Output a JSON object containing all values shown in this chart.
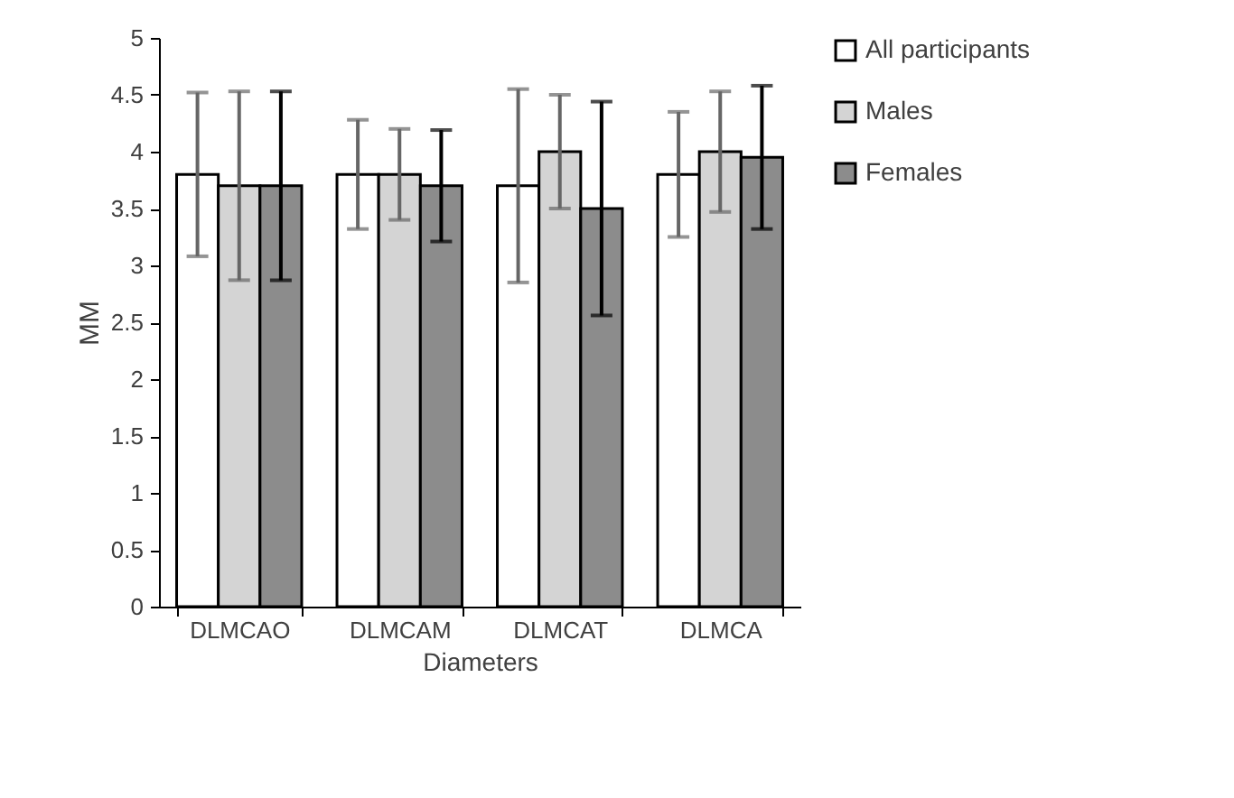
{
  "chart_data": {
    "type": "bar",
    "xlabel": "Diameters",
    "ylabel": "MM",
    "categories": [
      "DLMCAO",
      "DLMCAM",
      "DLMCAT",
      "DLMCA"
    ],
    "series": [
      {
        "name": "All participants",
        "color": "#ffffff",
        "values": [
          3.8,
          3.8,
          3.7,
          3.8
        ],
        "errors": [
          0.72,
          0.48,
          0.85,
          0.55
        ]
      },
      {
        "name": "Males",
        "color": "#d4d4d4",
        "values": [
          3.7,
          3.8,
          4.0,
          4.0
        ],
        "errors": [
          0.83,
          0.4,
          0.5,
          0.53
        ]
      },
      {
        "name": "Females",
        "color": "#8c8c8c",
        "values": [
          3.7,
          3.7,
          3.5,
          3.95
        ],
        "errors": [
          0.83,
          0.49,
          0.94,
          0.63
        ]
      }
    ],
    "ylim": [
      0,
      5
    ],
    "yticks": [
      0,
      0.5,
      1,
      1.5,
      2,
      2.5,
      3,
      3.5,
      4,
      4.5,
      5
    ],
    "grid": false,
    "legend": "right"
  }
}
